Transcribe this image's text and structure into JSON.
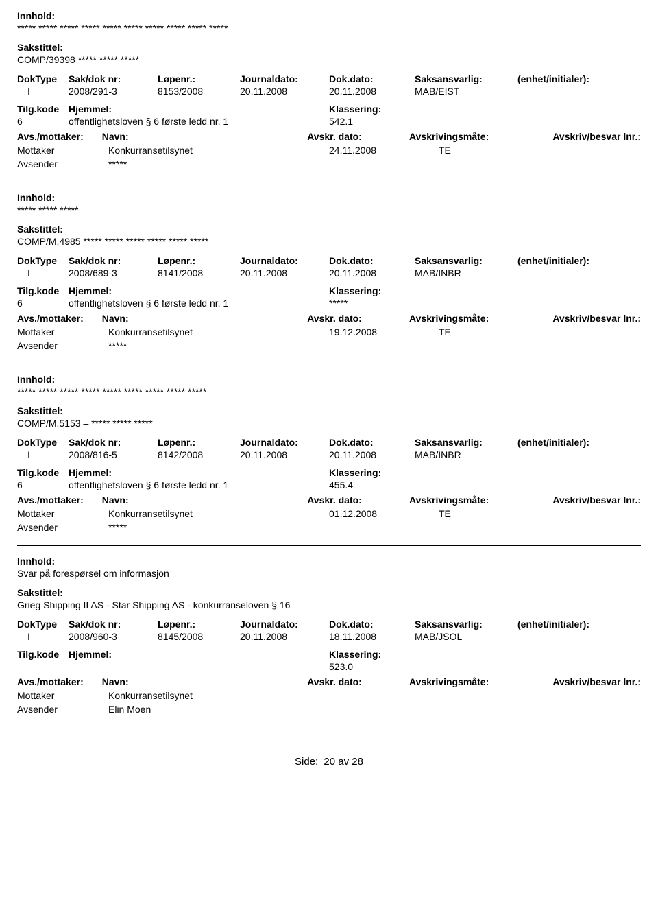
{
  "labels": {
    "innhold": "Innhold:",
    "sakstittel": "Sakstittel:",
    "doktype": "DokType",
    "sakdok": "Sak/dok nr:",
    "lopenr": "Løpenr.:",
    "journaldato": "Journaldato:",
    "dokdato": "Dok.dato:",
    "saksansvarlig": "Saksansvarlig:",
    "enhet": "(enhet/initialer):",
    "tilgkode": "Tilg.kode",
    "hjemmel": "Hjemmel:",
    "klassering": "Klassering:",
    "avsmottaker": "Avs./mottaker:",
    "navn": "Navn:",
    "avskrdato": "Avskr. dato:",
    "avskrivmate": "Avskrivingsmåte:",
    "avskrivlnr": "Avskriv/besvar lnr.:",
    "mottaker": "Mottaker",
    "avsender": "Avsender"
  },
  "records": [
    {
      "innhold": "***** ***** ***** ***** ***** ***** ***** ***** ***** *****",
      "sakstittel": "COMP/39398 ***** ***** *****",
      "doktype": "I",
      "sakdok": "2008/291-3",
      "lopenr": "8153/2008",
      "journaldato": "20.11.2008",
      "dokdato": "20.11.2008",
      "saksansvarlig": "MAB/EIST",
      "enhet": "",
      "tilgkode": "6",
      "hjemmel": "offentlighetsloven § 6 første ledd nr. 1",
      "klassering": "542.1",
      "mottaker_navn": "Konkurransetilsynet",
      "mottaker_dato": "24.11.2008",
      "mottaker_mate": "TE",
      "avsender_navn": "*****"
    },
    {
      "innhold": "***** ***** *****",
      "sakstittel": "COMP/M.4985 ***** ***** ***** ***** ***** *****",
      "doktype": "I",
      "sakdok": "2008/689-3",
      "lopenr": "8141/2008",
      "journaldato": "20.11.2008",
      "dokdato": "20.11.2008",
      "saksansvarlig": "MAB/INBR",
      "enhet": "",
      "tilgkode": "6",
      "hjemmel": "offentlighetsloven § 6 første ledd nr. 1",
      "klassering": "*****",
      "mottaker_navn": "Konkurransetilsynet",
      "mottaker_dato": "19.12.2008",
      "mottaker_mate": "TE",
      "avsender_navn": "*****"
    },
    {
      "innhold": "***** ***** ***** ***** ***** ***** ***** ***** *****",
      "sakstittel": "COMP/M.5153 – ***** ***** *****",
      "doktype": "I",
      "sakdok": "2008/816-5",
      "lopenr": "8142/2008",
      "journaldato": "20.11.2008",
      "dokdato": "20.11.2008",
      "saksansvarlig": "MAB/INBR",
      "enhet": "",
      "tilgkode": "6",
      "hjemmel": "offentlighetsloven § 6 første ledd nr. 1",
      "klassering": "455.4",
      "mottaker_navn": "Konkurransetilsynet",
      "mottaker_dato": "01.12.2008",
      "mottaker_mate": "TE",
      "avsender_navn": "*****"
    },
    {
      "innhold": "Svar på forespørsel om informasjon",
      "sakstittel": "Grieg Shipping II AS - Star Shipping AS - konkurranseloven § 16",
      "doktype": "I",
      "sakdok": "2008/960-3",
      "lopenr": "8145/2008",
      "journaldato": "20.11.2008",
      "dokdato": "18.11.2008",
      "saksansvarlig": "MAB/JSOL",
      "enhet": "",
      "tilgkode": "",
      "hjemmel": "",
      "klassering": "523.0",
      "mottaker_navn": "Konkurransetilsynet",
      "mottaker_dato": "",
      "mottaker_mate": "",
      "avsender_navn": "Elin Moen"
    }
  ],
  "footer": {
    "label": "Side:",
    "current": "20",
    "of": "av",
    "total": "28"
  }
}
